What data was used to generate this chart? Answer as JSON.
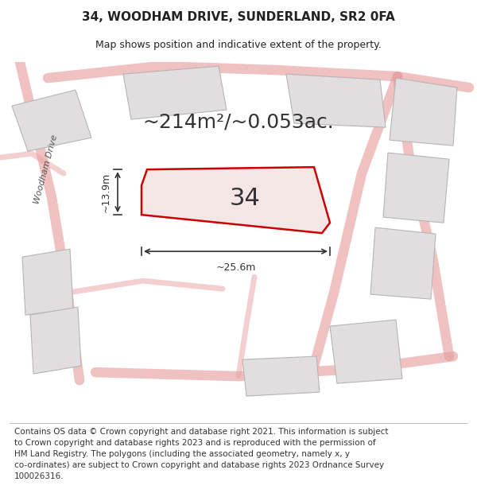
{
  "title_line1": "34, WOODHAM DRIVE, SUNDERLAND, SR2 0FA",
  "title_line2": "Map shows position and indicative extent of the property.",
  "footer_text": "Contains OS data © Crown copyright and database right 2021. This information is subject\nto Crown copyright and database rights 2023 and is reproduced with the permission of\nHM Land Registry. The polygons (including the associated geometry, namely x, y\nco-ordinates) are subject to Crown copyright and database rights 2023 Ordnance Survey\n100026316.",
  "area_label": "~214m²/~0.053ac.",
  "plot_number": "34",
  "dim_width": "~25.6m",
  "dim_height": "~13.9m",
  "map_bg": "#f0eeee",
  "highlight_plot_fill": "#f5e6e6",
  "highlight_plot_edge": "#cc0000",
  "road_color": "#e8a0a0",
  "other_plot_fill": "#e0dede",
  "other_plot_edge": "#b8b4b4",
  "dim_color": "#333333",
  "text_color": "#222222",
  "road_label": "Woodham Drive",
  "title_fontsize": 11,
  "subtitle_fontsize": 9,
  "footer_fontsize": 7.5,
  "area_fontsize": 18,
  "plot_num_fontsize": 22
}
